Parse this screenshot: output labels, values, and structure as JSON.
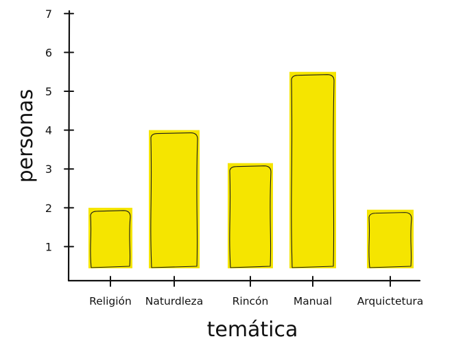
{
  "chart_data": {
    "type": "bar",
    "title": "",
    "xlabel": "temática",
    "ylabel": "personas",
    "categories": [
      "Religión",
      "Naturdleza",
      "Rincón",
      "Manual",
      "Arquictetura"
    ],
    "values": [
      2.0,
      4.0,
      3.15,
      5.5,
      1.95
    ],
    "yticks": [
      1,
      2,
      3,
      4,
      5,
      6,
      7
    ],
    "ylim": [
      0,
      7
    ],
    "grid": false,
    "legend": "none",
    "bar_color": "#f5e500"
  }
}
